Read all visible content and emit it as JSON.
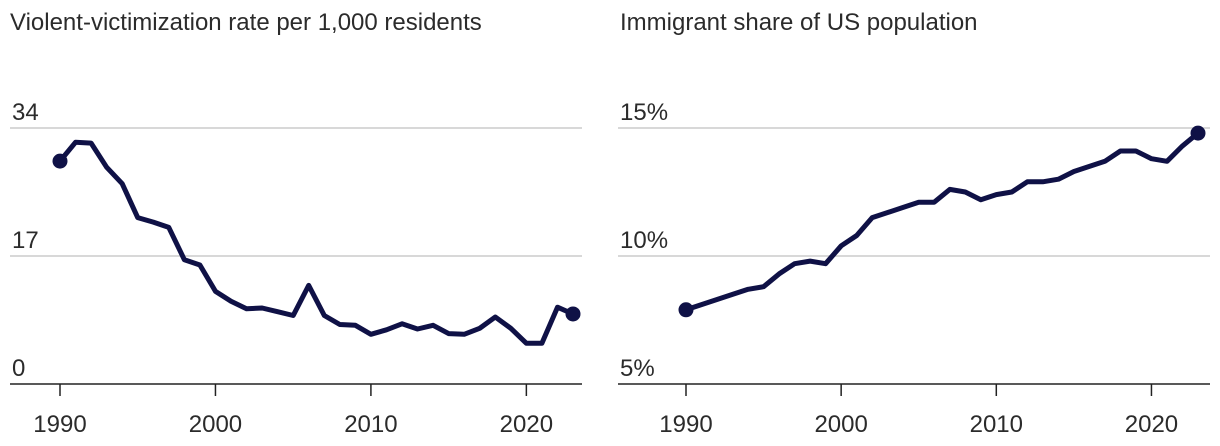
{
  "colors": {
    "line": "#0f1146",
    "grid": "#cccccc",
    "axis": "#222222",
    "text": "#2b2b2b"
  },
  "chart_data": [
    {
      "type": "line",
      "title": "Violent-victimization rate per 1,000 residents",
      "xlabel": "",
      "ylabel": "",
      "xlim": [
        1990,
        2023
      ],
      "ylim": [
        0,
        34
      ],
      "x_ticks": [
        1990,
        2000,
        2010,
        2020
      ],
      "x_tick_labels": [
        "1990",
        "2000",
        "2010",
        "2020"
      ],
      "y_ticks": [
        0,
        17,
        34
      ],
      "y_tick_labels": [
        "0",
        "17",
        "34"
      ],
      "grid": "horizontal",
      "end_markers": true,
      "series": [
        {
          "x": [
            1990,
            1991,
            1992,
            1993,
            1994,
            1995,
            1996,
            1997,
            1998,
            1999,
            2000,
            2001,
            2002,
            2003,
            2004,
            2005,
            2006,
            2007,
            2008,
            2009,
            2010,
            2011,
            2012,
            2013,
            2014,
            2015,
            2016,
            2017,
            2018,
            2019,
            2020,
            2021,
            2022,
            2023
          ],
          "values": [
            29.6,
            32.1,
            32.0,
            28.8,
            26.6,
            22.1,
            21.5,
            20.8,
            16.5,
            15.8,
            12.3,
            11.0,
            10.0,
            10.1,
            9.6,
            9.1,
            13.1,
            9.1,
            7.9,
            7.8,
            6.6,
            7.2,
            8.0,
            7.3,
            7.8,
            6.7,
            6.6,
            7.4,
            8.9,
            7.4,
            5.4,
            5.4,
            10.2,
            9.3
          ]
        }
      ]
    },
    {
      "type": "line",
      "title": "Immigrant share of US population",
      "xlabel": "",
      "ylabel": "",
      "xlim": [
        1990,
        2023
      ],
      "ylim": [
        5,
        15
      ],
      "x_ticks": [
        1990,
        2000,
        2010,
        2020
      ],
      "x_tick_labels": [
        "1990",
        "2000",
        "2010",
        "2020"
      ],
      "y_ticks": [
        5,
        10,
        15
      ],
      "y_tick_labels": [
        "5%",
        "10%",
        "15%"
      ],
      "grid": "horizontal",
      "end_markers": true,
      "series": [
        {
          "x": [
            1990,
            1991,
            1992,
            1993,
            1994,
            1995,
            1996,
            1997,
            1998,
            1999,
            2000,
            2001,
            2002,
            2003,
            2004,
            2005,
            2006,
            2007,
            2008,
            2009,
            2010,
            2011,
            2012,
            2013,
            2014,
            2015,
            2016,
            2017,
            2018,
            2019,
            2020,
            2021,
            2022,
            2023
          ],
          "values": [
            7.9,
            8.1,
            8.3,
            8.5,
            8.7,
            8.8,
            9.3,
            9.7,
            9.8,
            9.7,
            10.4,
            10.8,
            11.5,
            11.7,
            11.9,
            12.1,
            12.1,
            12.6,
            12.5,
            12.2,
            12.4,
            12.5,
            12.9,
            12.9,
            13.0,
            13.3,
            13.5,
            13.7,
            14.1,
            14.1,
            13.8,
            13.7,
            14.3,
            14.8
          ]
        }
      ]
    }
  ]
}
